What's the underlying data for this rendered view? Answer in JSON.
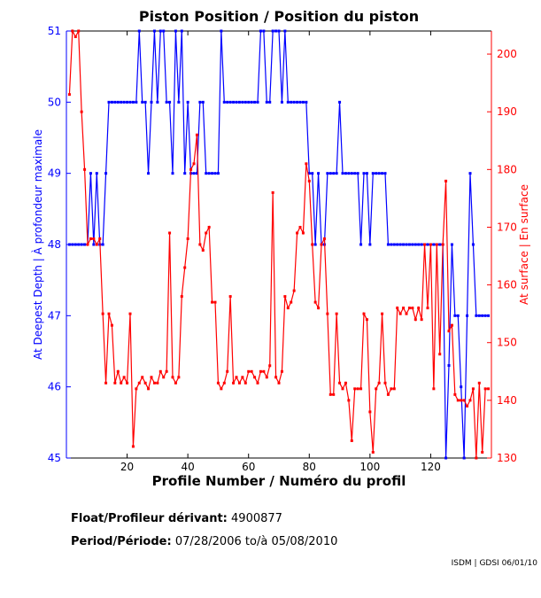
{
  "chart_data": {
    "type": "line",
    "title": "Piston Position / Position du piston",
    "xlabel": "Profile Number / Numéro du profil",
    "ylabel_left": "At Deepest Depth | À profondeur maximale",
    "ylabel_right": "At surface | En surface",
    "xlim": [
      0,
      140
    ],
    "ylim_left": [
      45,
      51
    ],
    "ylim_right": [
      130,
      204
    ],
    "xticks": [
      20,
      40,
      60,
      80,
      100,
      120
    ],
    "yticks_left": [
      45,
      46,
      47,
      48,
      49,
      50,
      51
    ],
    "yticks_right": [
      130,
      140,
      150,
      160,
      170,
      180,
      190,
      200
    ],
    "grid": false,
    "series": [
      {
        "name": "At Deepest Depth",
        "axis": "left",
        "color": "#0000ff",
        "values": [
          48,
          48,
          48,
          48,
          48,
          48,
          48,
          49,
          48,
          49,
          48,
          48,
          49,
          50,
          50,
          50,
          50,
          50,
          50,
          50,
          50,
          50,
          50,
          51,
          50,
          50,
          49,
          50,
          51,
          50,
          51,
          51,
          50,
          50,
          49,
          51,
          50,
          51,
          49,
          50,
          49,
          49,
          49,
          50,
          50,
          49,
          49,
          49,
          49,
          49,
          51,
          50,
          50,
          50,
          50,
          50,
          50,
          50,
          50,
          50,
          50,
          50,
          50,
          51,
          51,
          50,
          50,
          51,
          51,
          51,
          50,
          51,
          50,
          50,
          50,
          50,
          50,
          50,
          50,
          49,
          49,
          48,
          49,
          48,
          48,
          49,
          49,
          49,
          49,
          50,
          49,
          49,
          49,
          49,
          49,
          49,
          48,
          49,
          49,
          48,
          49,
          49,
          49,
          49,
          49,
          48,
          48,
          48,
          48,
          48,
          48,
          48,
          48,
          48,
          48,
          48,
          48,
          48,
          48,
          48,
          48,
          48,
          48,
          48,
          45,
          46.3,
          48,
          47,
          47,
          46,
          45,
          47,
          49,
          48,
          47,
          47,
          47,
          47,
          47
        ]
      },
      {
        "name": "At surface",
        "axis": "right",
        "color": "#ff0000",
        "values": [
          193,
          204,
          203,
          204,
          190,
          180,
          167,
          168,
          168,
          167,
          168,
          155,
          143,
          155,
          153,
          143,
          145,
          143,
          144,
          143,
          155,
          132,
          142,
          143,
          144,
          143,
          142,
          144,
          143,
          143,
          145,
          144,
          145,
          169,
          144,
          143,
          144,
          158,
          163,
          168,
          180,
          181,
          186,
          167,
          166,
          169,
          170,
          157,
          157,
          143,
          142,
          143,
          145,
          158,
          143,
          144,
          143,
          144,
          143,
          145,
          145,
          144,
          143,
          145,
          145,
          144,
          146,
          176,
          144,
          143,
          145,
          158,
          156,
          157,
          159,
          169,
          170,
          169,
          181,
          178,
          167,
          157,
          156,
          167,
          168,
          155,
          141,
          141,
          155,
          143,
          142,
          143,
          140,
          133,
          142,
          142,
          142,
          155,
          154,
          138,
          131,
          142,
          143,
          155,
          143,
          141,
          142,
          142,
          156,
          155,
          156,
          155,
          156,
          156,
          154,
          156,
          154,
          167,
          156,
          167,
          142,
          167,
          148,
          167,
          178,
          152,
          153,
          141,
          140,
          140,
          140,
          139,
          140,
          142,
          130,
          143,
          131,
          142,
          142
        ]
      }
    ]
  },
  "info": {
    "float_label": "Float/Profileur dérivant:",
    "float_value": "4900877",
    "period_label": "Period/Période:",
    "period_start": "07/28/2006",
    "period_sep": "to/à",
    "period_end": "05/08/2010"
  },
  "credit": "ISDM | GDSI 06/01/10"
}
